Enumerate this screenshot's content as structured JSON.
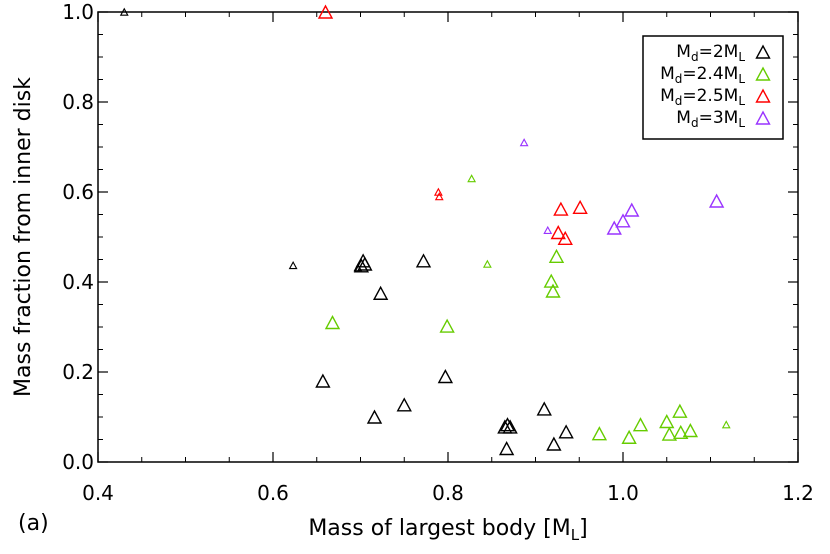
{
  "chart_data": {
    "type": "scatter",
    "panel_label": "(a)",
    "xlabel": "Mass of largest body [M",
    "xlabel_sub": "L",
    "xlabel_close": "]",
    "ylabel": "Mass fraction from inner disk",
    "xlim": [
      0.4,
      1.2
    ],
    "ylim": [
      0.0,
      1.0
    ],
    "xticks": [
      0.4,
      0.6,
      0.8,
      1.0,
      1.2
    ],
    "xtick_labels": [
      "0.4",
      "0.6",
      "0.8",
      "1.0",
      "1.2"
    ],
    "yticks": [
      0.0,
      0.2,
      0.4,
      0.6,
      0.8,
      1.0
    ],
    "ytick_labels": [
      "0.0",
      "0.2",
      "0.4",
      "0.6",
      "0.8",
      "1.0"
    ],
    "grid": false,
    "legend_position": "top-right",
    "marker": "triangle",
    "series": [
      {
        "legend": {
          "main": "M",
          "sub": "d",
          "mid": "=2M",
          "sub2": "L"
        },
        "color": "#000000",
        "points": [
          {
            "x": 0.43,
            "y": 1.0,
            "s": "small"
          },
          {
            "x": 0.623,
            "y": 0.437,
            "s": "small"
          },
          {
            "x": 0.657,
            "y": 0.18,
            "s": "large"
          },
          {
            "x": 0.697,
            "y": 0.432,
            "s": "small"
          },
          {
            "x": 0.701,
            "y": 0.436,
            "s": "large"
          },
          {
            "x": 0.703,
            "y": 0.447,
            "s": "large"
          },
          {
            "x": 0.705,
            "y": 0.44,
            "s": "large"
          },
          {
            "x": 0.716,
            "y": 0.1,
            "s": "large"
          },
          {
            "x": 0.723,
            "y": 0.375,
            "s": "large"
          },
          {
            "x": 0.75,
            "y": 0.127,
            "s": "large"
          },
          {
            "x": 0.772,
            "y": 0.447,
            "s": "large"
          },
          {
            "x": 0.797,
            "y": 0.19,
            "s": "large"
          },
          {
            "x": 0.865,
            "y": 0.078,
            "s": "large"
          },
          {
            "x": 0.867,
            "y": 0.03,
            "s": "large"
          },
          {
            "x": 0.868,
            "y": 0.083,
            "s": "large"
          },
          {
            "x": 0.871,
            "y": 0.078,
            "s": "large"
          },
          {
            "x": 0.91,
            "y": 0.118,
            "s": "large"
          },
          {
            "x": 0.921,
            "y": 0.04,
            "s": "large"
          },
          {
            "x": 0.935,
            "y": 0.067,
            "s": "large"
          }
        ]
      },
      {
        "legend": {
          "main": "M",
          "sub": "d",
          "mid": "=2.4M",
          "sub2": "L"
        },
        "color": "#66cc00",
        "points": [
          {
            "x": 0.668,
            "y": 0.31,
            "s": "large"
          },
          {
            "x": 0.799,
            "y": 0.302,
            "s": "large"
          },
          {
            "x": 0.827,
            "y": 0.63,
            "s": "small"
          },
          {
            "x": 0.845,
            "y": 0.44,
            "s": "small"
          },
          {
            "x": 0.918,
            "y": 0.402,
            "s": "large"
          },
          {
            "x": 0.92,
            "y": 0.38,
            "s": "large"
          },
          {
            "x": 0.924,
            "y": 0.457,
            "s": "large"
          },
          {
            "x": 0.973,
            "y": 0.063,
            "s": "large"
          },
          {
            "x": 1.007,
            "y": 0.055,
            "s": "large"
          },
          {
            "x": 1.02,
            "y": 0.083,
            "s": "large"
          },
          {
            "x": 1.05,
            "y": 0.09,
            "s": "large"
          },
          {
            "x": 1.053,
            "y": 0.062,
            "s": "large"
          },
          {
            "x": 1.065,
            "y": 0.113,
            "s": "large"
          },
          {
            "x": 1.066,
            "y": 0.066,
            "s": "large"
          },
          {
            "x": 1.077,
            "y": 0.07,
            "s": "large"
          },
          {
            "x": 1.118,
            "y": 0.083,
            "s": "small"
          }
        ]
      },
      {
        "legend": {
          "main": "M",
          "sub": "d",
          "mid": "=2.5M",
          "sub2": "L"
        },
        "color": "#ff0000",
        "points": [
          {
            "x": 0.66,
            "y": 1.0,
            "s": "large"
          },
          {
            "x": 0.789,
            "y": 0.6,
            "s": "small"
          },
          {
            "x": 0.79,
            "y": 0.59,
            "s": "small"
          },
          {
            "x": 0.926,
            "y": 0.51,
            "s": "large"
          },
          {
            "x": 0.929,
            "y": 0.562,
            "s": "large"
          },
          {
            "x": 0.934,
            "y": 0.497,
            "s": "large"
          },
          {
            "x": 0.951,
            "y": 0.566,
            "s": "large"
          }
        ]
      },
      {
        "legend": {
          "main": "M",
          "sub": "d",
          "mid": "=3M",
          "sub2": "L"
        },
        "color": "#9933ff",
        "points": [
          {
            "x": 0.887,
            "y": 0.71,
            "s": "small"
          },
          {
            "x": 0.914,
            "y": 0.515,
            "s": "small"
          },
          {
            "x": 0.99,
            "y": 0.52,
            "s": "large"
          },
          {
            "x": 1.0,
            "y": 0.536,
            "s": "large"
          },
          {
            "x": 1.01,
            "y": 0.56,
            "s": "large"
          },
          {
            "x": 1.107,
            "y": 0.58,
            "s": "large"
          }
        ]
      }
    ]
  }
}
